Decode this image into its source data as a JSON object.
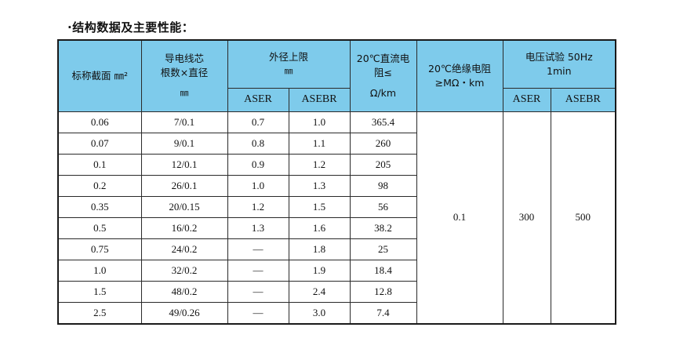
{
  "title": "·结构数据及主要性能：",
  "header": {
    "nominal_section": "标称截面 ㎜²",
    "conductor_line1": "导电线芯",
    "conductor_line2": "根数×直径",
    "conductor_unit": "㎜",
    "outer_dia_title": "外径上限",
    "outer_dia_unit": "㎜",
    "aser": "ASER",
    "asebr": "ASEBR",
    "dc_res_line1": "20℃直流电",
    "dc_res_line2": "阻≤",
    "dc_res_unit": "Ω/km",
    "insul_line1": "20℃绝缘电阻",
    "insul_line2": "≥MΩ・km",
    "voltage_line1": "电压试验 50Hz",
    "voltage_line2": "1min",
    "voltage_aser": "ASER",
    "voltage_asebr": "ASEBR"
  },
  "rows": [
    {
      "section": "0.06",
      "conductor": "7/0.1",
      "aser": "0.7",
      "asebr": "1.0",
      "resistance": "365.4"
    },
    {
      "section": "0.07",
      "conductor": "9/0.1",
      "aser": "0.8",
      "asebr": "1.1",
      "resistance": "260"
    },
    {
      "section": "0.1",
      "conductor": "12/0.1",
      "aser": "0.9",
      "asebr": "1.2",
      "resistance": "205"
    },
    {
      "section": "0.2",
      "conductor": "26/0.1",
      "aser": "1.0",
      "asebr": "1.3",
      "resistance": "98"
    },
    {
      "section": "0.35",
      "conductor": "20/0.15",
      "aser": "1.2",
      "asebr": "1.5",
      "resistance": "56"
    },
    {
      "section": "0.5",
      "conductor": "16/0.2",
      "aser": "1.3",
      "asebr": "1.6",
      "resistance": "38.2"
    },
    {
      "section": "0.75",
      "conductor": "24/0.2",
      "aser": "—",
      "asebr": "1.8",
      "resistance": "25"
    },
    {
      "section": "1.0",
      "conductor": "32/0.2",
      "aser": "—",
      "asebr": "1.9",
      "resistance": "18.4"
    },
    {
      "section": "1.5",
      "conductor": "48/0.2",
      "aser": "—",
      "asebr": "2.4",
      "resistance": "12.8"
    },
    {
      "section": "2.5",
      "conductor": "49/0.26",
      "aser": "—",
      "asebr": "3.0",
      "resistance": "7.4"
    }
  ],
  "merged": {
    "insulation_resistance": "0.1",
    "voltage_aser": "300",
    "voltage_asebr": "500"
  },
  "colors": {
    "header_bg": "#7ecbeb",
    "border": "#2a2a2a"
  }
}
